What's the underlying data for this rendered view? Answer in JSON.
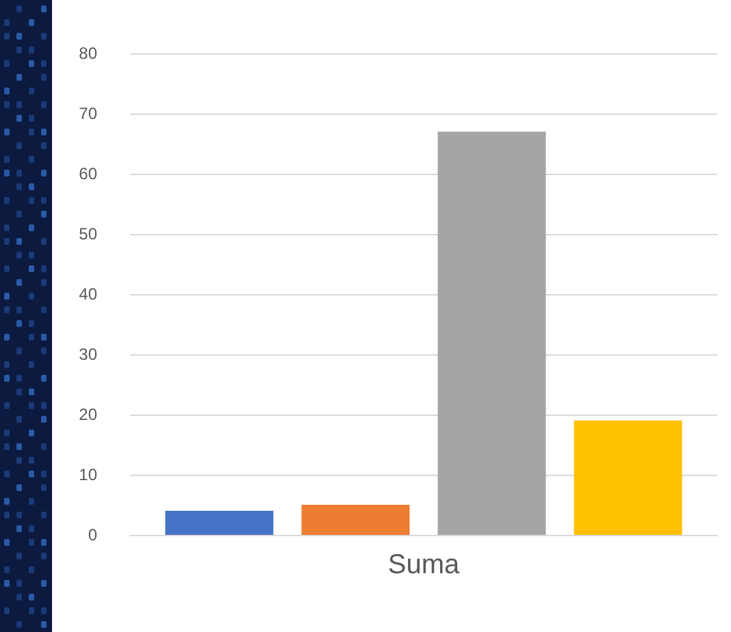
{
  "chart_data": {
    "type": "bar",
    "categories": [
      "Suma"
    ],
    "series": [
      {
        "color": "#4472c4",
        "values": [
          4
        ]
      },
      {
        "color": "#ed7d31",
        "values": [
          5
        ]
      },
      {
        "color": "#a5a5a5",
        "values": [
          67
        ]
      },
      {
        "color": "#ffc000",
        "values": [
          19
        ]
      }
    ],
    "ylim": [
      0,
      80
    ],
    "yticks": [
      0,
      10,
      20,
      30,
      40,
      50,
      60,
      70,
      80
    ],
    "grid": "y"
  }
}
